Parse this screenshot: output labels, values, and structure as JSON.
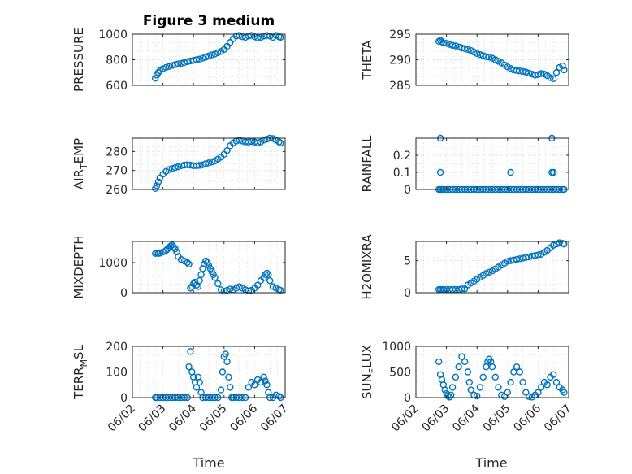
{
  "figure": {
    "title": "Figure 3 medium",
    "xlabel": "Time",
    "marker_color": "#0072BD",
    "grid": "minor dotted",
    "x_tick_labels": [
      "06/02",
      "06/03",
      "06/04",
      "06/05",
      "06/06",
      "06/07"
    ]
  },
  "chart_data": [
    {
      "type": "scatter",
      "ylabel": "PRESSURE",
      "xlim": [
        2,
        7
      ],
      "ylim": [
        600,
        1000
      ],
      "yticks": [
        600,
        800,
        1000
      ],
      "x": [
        2.75,
        2.8,
        2.85,
        2.9,
        3.0,
        3.1,
        3.2,
        3.3,
        3.4,
        3.5,
        3.6,
        3.7,
        3.8,
        3.9,
        4.0,
        4.1,
        4.2,
        4.3,
        4.4,
        4.5,
        4.6,
        4.7,
        4.8,
        4.9,
        5.0,
        5.1,
        5.2,
        5.3,
        5.4,
        5.5,
        5.6,
        5.7,
        5.8,
        5.9,
        6.0,
        6.1,
        6.2,
        6.3,
        6.4,
        6.5,
        6.6,
        6.7,
        6.8,
        6.85
      ],
      "y": [
        655,
        680,
        700,
        715,
        730,
        740,
        748,
        755,
        762,
        768,
        772,
        778,
        785,
        790,
        795,
        800,
        805,
        812,
        820,
        830,
        838,
        845,
        855,
        865,
        880,
        905,
        935,
        965,
        985,
        990,
        980,
        975,
        985,
        990,
        980,
        970,
        975,
        985,
        990,
        985,
        975,
        990,
        980,
        975
      ]
    },
    {
      "type": "scatter",
      "ylabel": "THETA",
      "xlim": [
        2,
        7
      ],
      "ylim": [
        285,
        295
      ],
      "yticks": [
        285,
        290,
        295
      ],
      "x": [
        2.75,
        2.8,
        2.85,
        2.9,
        3.0,
        3.1,
        3.2,
        3.3,
        3.4,
        3.5,
        3.6,
        3.7,
        3.8,
        3.9,
        4.0,
        4.1,
        4.2,
        4.3,
        4.4,
        4.5,
        4.6,
        4.7,
        4.8,
        4.9,
        5.0,
        5.1,
        5.2,
        5.3,
        5.4,
        5.5,
        5.6,
        5.7,
        5.8,
        5.9,
        6.0,
        6.1,
        6.2,
        6.3,
        6.4,
        6.5,
        6.6,
        6.7,
        6.8,
        6.85
      ],
      "y": [
        293.6,
        293.8,
        293.5,
        293.3,
        293.2,
        293.0,
        292.8,
        292.7,
        292.5,
        292.3,
        292.2,
        292.0,
        291.8,
        291.5,
        291.2,
        291.0,
        290.8,
        290.6,
        290.5,
        290.3,
        290.0,
        289.7,
        289.4,
        289.0,
        288.6,
        288.3,
        288.0,
        287.9,
        287.8,
        287.7,
        287.6,
        287.4,
        287.2,
        287.0,
        287.1,
        287.3,
        287.2,
        286.9,
        286.5,
        286.3,
        287.5,
        288.5,
        288.8,
        288.0
      ]
    },
    {
      "type": "scatter",
      "ylabel": "AIR",
      "ylabel_sub": "T",
      "ylabel_rest": "EMP",
      "xlim": [
        2,
        7
      ],
      "ylim": [
        260,
        287
      ],
      "yticks": [
        260,
        270,
        280
      ],
      "x": [
        2.75,
        2.8,
        2.85,
        2.9,
        3.0,
        3.1,
        3.2,
        3.3,
        3.4,
        3.5,
        3.6,
        3.7,
        3.8,
        3.9,
        4.0,
        4.1,
        4.2,
        4.3,
        4.4,
        4.5,
        4.6,
        4.7,
        4.8,
        4.9,
        5.0,
        5.1,
        5.2,
        5.3,
        5.4,
        5.5,
        5.6,
        5.7,
        5.8,
        5.9,
        6.0,
        6.1,
        6.2,
        6.3,
        6.4,
        6.5,
        6.6,
        6.7,
        6.8,
        6.85
      ],
      "y": [
        260.5,
        262,
        264,
        266,
        268,
        269.5,
        270.5,
        271,
        271.5,
        272,
        272.5,
        272.8,
        273,
        272.8,
        272.5,
        272.5,
        272.7,
        273,
        273.5,
        274,
        274.5,
        275,
        276,
        277,
        278.5,
        280.5,
        283,
        284.5,
        285.5,
        286,
        285.5,
        285,
        285,
        285.2,
        285,
        284.5,
        285,
        286,
        286.5,
        287,
        286.8,
        286,
        285,
        284.5
      ]
    },
    {
      "type": "scatter",
      "ylabel": "RAINFALL",
      "xlim": [
        2,
        7
      ],
      "ylim": [
        0,
        0.3
      ],
      "yticks": [
        0,
        0.1,
        0.2
      ],
      "ytick_labels": [
        "0",
        "0.1",
        "0.2"
      ],
      "x": [
        2.75,
        2.8,
        2.85,
        2.9,
        3.0,
        3.1,
        3.2,
        3.3,
        3.4,
        3.5,
        3.6,
        3.7,
        3.8,
        3.9,
        4.0,
        4.1,
        4.2,
        4.3,
        4.4,
        4.5,
        4.6,
        4.7,
        4.8,
        4.9,
        5.0,
        5.1,
        5.2,
        5.3,
        5.4,
        5.5,
        5.6,
        5.7,
        5.8,
        5.9,
        6.0,
        6.1,
        6.2,
        6.3,
        6.4,
        6.5,
        6.6,
        6.7,
        6.8,
        6.85,
        2.8,
        2.8,
        5.1,
        6.45,
        6.45,
        6.5
      ],
      "y": [
        0,
        0,
        0,
        0,
        0,
        0,
        0,
        0,
        0,
        0,
        0,
        0,
        0,
        0,
        0,
        0,
        0,
        0,
        0,
        0,
        0,
        0,
        0,
        0,
        0,
        0,
        0,
        0,
        0,
        0,
        0,
        0,
        0,
        0,
        0,
        0,
        0,
        0,
        0,
        0,
        0,
        0,
        0,
        0,
        0.3,
        0.1,
        0.1,
        0.3,
        0.1,
        0.1
      ]
    },
    {
      "type": "scatter",
      "ylabel": "MIXDEPTH",
      "xlim": [
        2,
        7
      ],
      "ylim": [
        0,
        1700
      ],
      "yticks": [
        0,
        1000
      ],
      "ytick_labels": [
        "0",
        "1000"
      ],
      "x": [
        2.75,
        2.8,
        2.85,
        2.9,
        3.0,
        3.1,
        3.15,
        3.2,
        3.25,
        3.3,
        3.35,
        3.4,
        3.45,
        3.5,
        3.6,
        3.7,
        3.8,
        3.85,
        3.9,
        3.95,
        4.0,
        4.05,
        4.1,
        4.15,
        4.2,
        4.25,
        4.3,
        4.35,
        4.4,
        4.45,
        4.5,
        4.55,
        4.6,
        4.65,
        4.7,
        4.8,
        4.9,
        5.0,
        5.1,
        5.2,
        5.3,
        5.4,
        5.5,
        5.6,
        5.7,
        5.8,
        5.9,
        6.0,
        6.1,
        6.2,
        6.3,
        6.35,
        6.4,
        6.45,
        6.5,
        6.6,
        6.7,
        6.8,
        6.85
      ],
      "y": [
        1300,
        1320,
        1300,
        1310,
        1350,
        1400,
        1450,
        1500,
        1550,
        1580,
        1520,
        1450,
        1350,
        1200,
        1100,
        1050,
        1000,
        950,
        150,
        200,
        300,
        350,
        250,
        200,
        400,
        600,
        800,
        950,
        1050,
        1000,
        900,
        800,
        700,
        600,
        500,
        300,
        100,
        50,
        80,
        120,
        100,
        150,
        200,
        150,
        100,
        60,
        80,
        150,
        250,
        400,
        500,
        600,
        650,
        600,
        400,
        200,
        150,
        100,
        80
      ]
    },
    {
      "type": "scatter",
      "ylabel": "H2OMIXRA",
      "xlim": [
        2,
        7
      ],
      "ylim": [
        0,
        8
      ],
      "yticks": [
        0,
        5
      ],
      "x": [
        2.75,
        2.8,
        2.85,
        2.9,
        3.0,
        3.1,
        3.2,
        3.3,
        3.4,
        3.5,
        3.6,
        3.7,
        3.8,
        3.9,
        4.0,
        4.1,
        4.2,
        4.3,
        4.4,
        4.5,
        4.6,
        4.7,
        4.8,
        4.9,
        5.0,
        5.1,
        5.2,
        5.3,
        5.4,
        5.5,
        5.6,
        5.7,
        5.8,
        5.9,
        6.0,
        6.1,
        6.2,
        6.3,
        6.4,
        6.5,
        6.6,
        6.7,
        6.8,
        6.85
      ],
      "y": [
        0.5,
        0.5,
        0.5,
        0.5,
        0.5,
        0.5,
        0.5,
        0.5,
        0.5,
        0.6,
        0.6,
        1.2,
        1.5,
        1.8,
        2.1,
        2.4,
        2.7,
        3.0,
        3.2,
        3.4,
        3.7,
        4.0,
        4.3,
        4.6,
        4.9,
        5.0,
        5.1,
        5.2,
        5.3,
        5.4,
        5.5,
        5.6,
        5.7,
        5.8,
        5.9,
        6.0,
        6.3,
        6.6,
        7.0,
        7.4,
        7.6,
        7.8,
        7.7,
        7.6
      ]
    },
    {
      "type": "scatter",
      "ylabel": "TERR",
      "ylabel_sub": "M",
      "ylabel_rest": "SL",
      "xlim": [
        2,
        7
      ],
      "ylim": [
        0,
        200
      ],
      "yticks": [
        0,
        100,
        200
      ],
      "x": [
        2.75,
        2.8,
        2.9,
        3.0,
        3.1,
        3.2,
        3.3,
        3.4,
        3.5,
        3.6,
        3.7,
        3.8,
        3.85,
        3.9,
        3.95,
        4.0,
        4.05,
        4.1,
        4.15,
        4.2,
        4.25,
        4.3,
        4.4,
        4.5,
        4.6,
        4.7,
        4.8,
        4.9,
        4.95,
        5.0,
        5.05,
        5.1,
        5.15,
        5.2,
        5.25,
        5.3,
        5.4,
        5.5,
        5.6,
        5.7,
        5.8,
        5.9,
        6.0,
        6.1,
        6.2,
        6.3,
        6.35,
        6.4,
        6.45,
        6.5,
        6.6,
        6.7,
        6.8,
        6.85
      ],
      "y": [
        0,
        0,
        0,
        0,
        0,
        0,
        0,
        0,
        0,
        0,
        0,
        0,
        120,
        180,
        100,
        80,
        60,
        40,
        80,
        60,
        20,
        0,
        0,
        0,
        0,
        0,
        0,
        30,
        100,
        160,
        170,
        140,
        80,
        40,
        0,
        0,
        0,
        0,
        0,
        0,
        40,
        60,
        50,
        70,
        60,
        80,
        65,
        50,
        20,
        0,
        0,
        10,
        5,
        0
      ]
    },
    {
      "type": "scatter",
      "ylabel": "SUN",
      "ylabel_sub": "F",
      "ylabel_rest": "LUX",
      "xlim": [
        2,
        7
      ],
      "ylim": [
        0,
        1000
      ],
      "yticks": [
        0,
        500,
        1000
      ],
      "x": [
        2.75,
        2.8,
        2.85,
        2.9,
        2.95,
        3.0,
        3.05,
        3.1,
        3.15,
        3.2,
        3.3,
        3.4,
        3.5,
        3.6,
        3.7,
        3.75,
        3.8,
        3.9,
        4.0,
        4.1,
        4.2,
        4.3,
        4.35,
        4.4,
        4.45,
        4.5,
        4.6,
        4.7,
        4.8,
        4.9,
        5.0,
        5.1,
        5.2,
        5.3,
        5.4,
        5.5,
        5.6,
        5.7,
        5.8,
        5.9,
        6.0,
        6.1,
        6.2,
        6.3,
        6.4,
        6.5,
        6.6,
        6.7,
        6.8,
        6.85
      ],
      "y": [
        700,
        450,
        350,
        250,
        150,
        80,
        30,
        10,
        50,
        200,
        400,
        600,
        800,
        700,
        500,
        300,
        150,
        50,
        30,
        200,
        400,
        600,
        700,
        750,
        700,
        600,
        400,
        200,
        50,
        20,
        100,
        300,
        500,
        600,
        500,
        300,
        100,
        20,
        10,
        50,
        100,
        200,
        300,
        250,
        400,
        450,
        300,
        200,
        150,
        100
      ]
    }
  ]
}
